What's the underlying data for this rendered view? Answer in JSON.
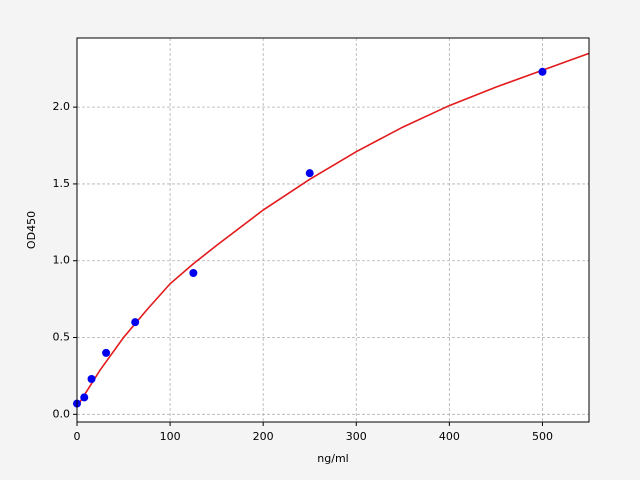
{
  "chart_data": {
    "type": "scatter",
    "x_label": "ng/ml",
    "y_label": "OD450",
    "xlim": [
      0,
      550
    ],
    "ylim": [
      -0.05,
      2.45
    ],
    "xticks": [
      0,
      100,
      200,
      300,
      400,
      500
    ],
    "yticks": [
      {
        "value": 0,
        "label": "0.0"
      },
      {
        "value": 0.5,
        "label": "0.5"
      },
      {
        "value": 1,
        "label": "1.0"
      },
      {
        "value": 1.5,
        "label": "1.5"
      },
      {
        "value": 2,
        "label": "2.0"
      }
    ],
    "grid": true,
    "series": [
      {
        "type": "line",
        "color": "#e31a1c",
        "x": [
          0,
          25,
          50,
          75,
          100,
          125,
          150,
          200,
          250,
          300,
          350,
          400,
          450,
          500,
          550
        ],
        "values": [
          0.05,
          0.29,
          0.5,
          0.68,
          0.85,
          0.98,
          1.1,
          1.33,
          1.53,
          1.71,
          1.87,
          2.01,
          2.13,
          2.24,
          2.35
        ]
      },
      {
        "type": "scatter",
        "color": "#0000ee",
        "x": [
          0,
          7.8,
          15.6,
          31.25,
          62.5,
          125,
          250,
          500
        ],
        "values": [
          0.07,
          0.11,
          0.23,
          0.4,
          0.6,
          0.92,
          1.57,
          2.23
        ]
      }
    ]
  }
}
